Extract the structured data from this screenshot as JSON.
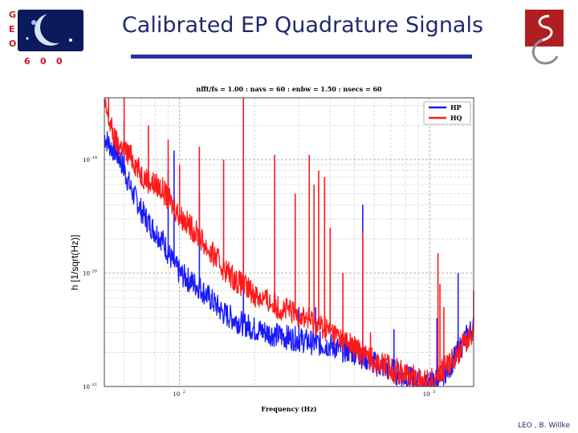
{
  "slide": {
    "title": "Calibrated EP Quadrature Signals",
    "left_logo_letters": [
      "G",
      "E",
      "O",
      "6",
      "0",
      "0"
    ],
    "footer": "LEO , B. Willke"
  },
  "colors": {
    "title": "#1f2a6b",
    "rule": "#2b2fa6",
    "hp": "#1a1aff",
    "hq": "#ff1a1a",
    "logo_red": "#b01e22"
  },
  "chart_data": {
    "type": "line",
    "title": "nfft/fs = 1.00 : navs = 60 : enbw = 1.50 : nsecs = 60",
    "xlabel": "Frequency (Hz)",
    "ylabel": "h [1/sqrt(Hz)]",
    "xscale": "log",
    "yscale": "log",
    "xlim": [
      50,
      1500
    ],
    "ylim": [
      1e-21,
      3.5e-19
    ],
    "xticks": [
      {
        "value": 100,
        "label": "10",
        "sup": "2"
      },
      {
        "value": 1000,
        "label": "10",
        "sup": "3"
      }
    ],
    "yticks": [
      {
        "value": 1e-19,
        "label": "10",
        "sup": "-19"
      },
      {
        "value": 1e-20,
        "label": "10",
        "sup": "-20"
      },
      {
        "value": 1e-21,
        "label": "10",
        "sup": "-21"
      }
    ],
    "grid": true,
    "legend": "top-right",
    "series": [
      {
        "name": "HP",
        "color": "#1a1aff",
        "x": [
          50,
          53,
          55,
          58,
          60,
          63,
          65,
          68,
          70,
          75,
          80,
          85,
          90,
          95,
          100,
          110,
          120,
          130,
          140,
          150,
          170,
          200,
          250,
          300,
          350,
          400,
          450,
          500,
          550,
          600,
          700,
          800,
          900,
          1000,
          1100,
          1200,
          1300,
          1400,
          1500
        ],
        "y": [
          1.6e-19,
          1.3e-19,
          1.2e-19,
          1e-19,
          8e-20,
          6e-20,
          5e-20,
          4.2e-20,
          3.6e-20,
          2.8e-20,
          2.3e-20,
          2e-20,
          1.5e-20,
          1.2e-20,
          1e-20,
          8.5e-21,
          7.5e-21,
          6.2e-21,
          5.2e-21,
          4.4e-21,
          3.8e-21,
          3.2e-21,
          2.8e-21,
          2.6e-21,
          2.4e-21,
          2.3e-21,
          2.1e-21,
          2e-21,
          1.8e-21,
          1.6e-21,
          1.4e-21,
          1.2e-21,
          1.1e-21,
          1.05e-21,
          1.2e-21,
          1.5e-21,
          2e-21,
          2.7e-21,
          3.4e-21
        ],
        "peaks": [
          {
            "x": 60,
            "y": 2.2e-19
          },
          {
            "x": 90,
            "y": 8e-20
          },
          {
            "x": 95,
            "y": 1.2e-19
          },
          {
            "x": 120,
            "y": 5e-20
          },
          {
            "x": 180,
            "y": 8e-20
          },
          {
            "x": 300,
            "y": 5e-21
          },
          {
            "x": 350,
            "y": 5e-21
          },
          {
            "x": 540,
            "y": 4e-20
          },
          {
            "x": 720,
            "y": 3.2e-21
          },
          {
            "x": 1070,
            "y": 4e-21
          },
          {
            "x": 1300,
            "y": 1e-20
          }
        ]
      },
      {
        "name": "HQ",
        "color": "#ff1a1a",
        "x": [
          50,
          53,
          55,
          58,
          60,
          63,
          65,
          68,
          70,
          75,
          80,
          85,
          90,
          95,
          100,
          110,
          120,
          130,
          140,
          150,
          170,
          200,
          250,
          300,
          350,
          400,
          450,
          500,
          550,
          600,
          700,
          800,
          900,
          1000,
          1100,
          1200,
          1300,
          1400,
          1500
        ],
        "y": [
          3e-19,
          2e-19,
          1.5e-19,
          1.3e-19,
          1.2e-19,
          1.1e-19,
          1e-19,
          8.5e-20,
          7.5e-20,
          6.5e-20,
          6e-20,
          5.5e-20,
          4.5e-20,
          3.8e-20,
          3.2e-20,
          2.6e-20,
          2.1e-20,
          1.6e-20,
          1.35e-20,
          1.1e-20,
          8.5e-21,
          6.5e-21,
          5e-21,
          4.3e-21,
          3.6e-21,
          3.1e-21,
          2.6e-21,
          2.2e-21,
          1.9e-21,
          1.7e-21,
          1.45e-21,
          1.3e-21,
          1.15e-21,
          1.1e-21,
          1.3e-21,
          1.6e-21,
          2e-21,
          2.5e-21,
          3.1e-21
        ],
        "peaks": [
          {
            "x": 52,
            "y": 3.5e-19
          },
          {
            "x": 60,
            "y": 3.5e-19
          },
          {
            "x": 75,
            "y": 2e-19
          },
          {
            "x": 90,
            "y": 1.5e-19
          },
          {
            "x": 100,
            "y": 9e-20
          },
          {
            "x": 120,
            "y": 1.3e-19
          },
          {
            "x": 150,
            "y": 1e-19
          },
          {
            "x": 180,
            "y": 3.5e-19
          },
          {
            "x": 240,
            "y": 1.1e-19
          },
          {
            "x": 290,
            "y": 5e-20
          },
          {
            "x": 330,
            "y": 1.1e-19
          },
          {
            "x": 345,
            "y": 6e-20
          },
          {
            "x": 360,
            "y": 8e-20
          },
          {
            "x": 380,
            "y": 7e-20
          },
          {
            "x": 400,
            "y": 2.5e-20
          },
          {
            "x": 450,
            "y": 1e-20
          },
          {
            "x": 540,
            "y": 2.3e-20
          },
          {
            "x": 580,
            "y": 3e-21
          },
          {
            "x": 1080,
            "y": 1.5e-20
          },
          {
            "x": 1100,
            "y": 8e-21
          },
          {
            "x": 1140,
            "y": 5e-21
          },
          {
            "x": 1500,
            "y": 7e-21
          }
        ]
      }
    ]
  }
}
